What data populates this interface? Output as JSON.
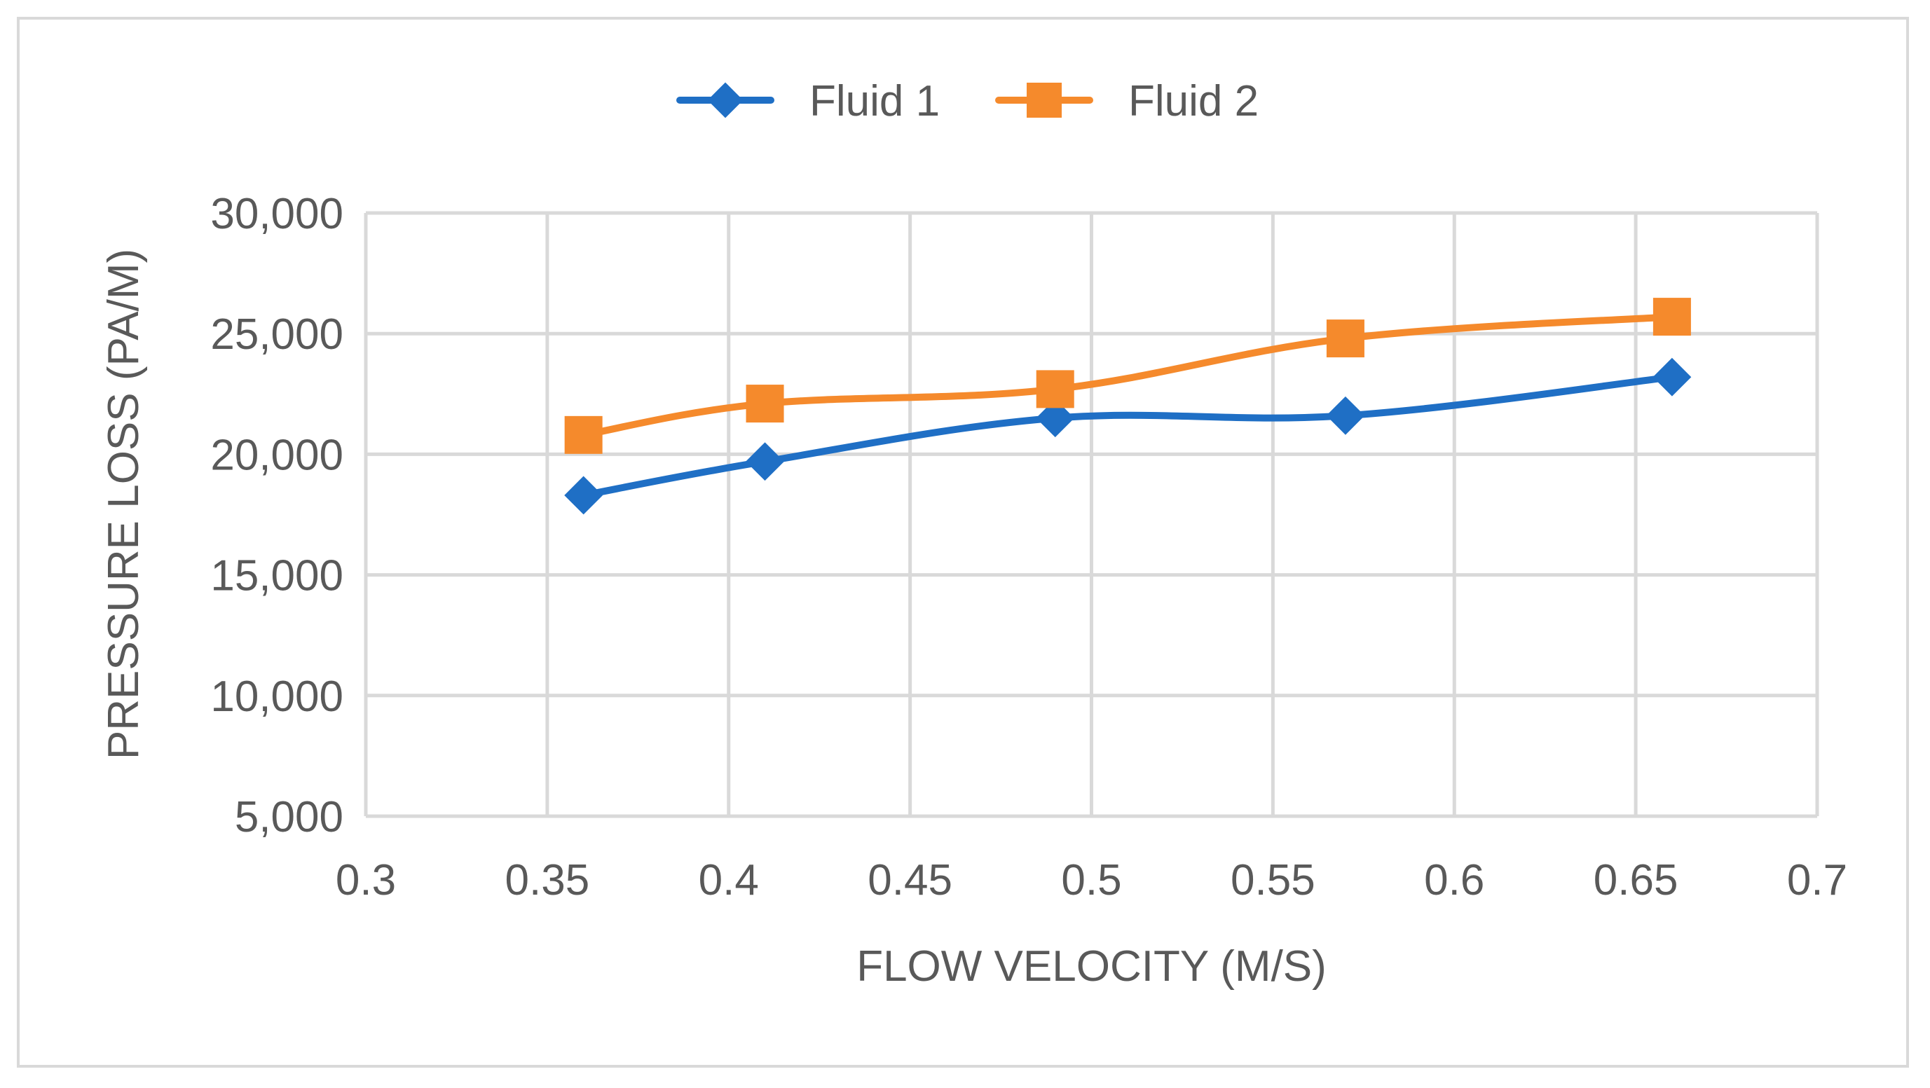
{
  "chart_data": {
    "type": "line",
    "title": "",
    "xlabel": "FLOW VELOCITY (M/S)",
    "ylabel": "PRESSURE LOSS (PA/M)",
    "xlim": [
      0.3,
      0.7
    ],
    "ylim": [
      5000,
      30000
    ],
    "x_ticks": [
      0.3,
      0.35,
      0.4,
      0.45,
      0.5,
      0.55,
      0.6,
      0.65,
      0.7
    ],
    "x_tick_labels": [
      "0.3",
      "0.35",
      "0.4",
      "0.45",
      "0.5",
      "0.55",
      "0.6",
      "0.65",
      "0.7"
    ],
    "y_ticks": [
      5000,
      10000,
      15000,
      20000,
      25000,
      30000
    ],
    "y_tick_labels": [
      "5,000",
      "10,000",
      "15,000",
      "20,000",
      "25,000",
      "30,000"
    ],
    "grid": true,
    "legend_position": "top",
    "x": [
      0.36,
      0.41,
      0.49,
      0.57,
      0.66
    ],
    "series": [
      {
        "name": "Fluid 1",
        "values": [
          18300,
          19700,
          21500,
          21600,
          23200
        ],
        "color": "#1f6fc5",
        "marker": "diamond"
      },
      {
        "name": "Fluid 2",
        "values": [
          20800,
          22100,
          22700,
          24800,
          25700
        ],
        "color": "#f58a2c",
        "marker": "square"
      }
    ]
  }
}
